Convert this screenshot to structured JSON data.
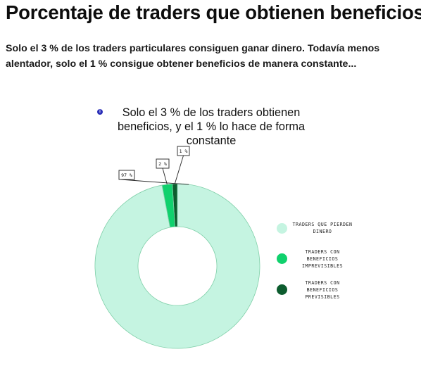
{
  "page": {
    "title": "Porcentaje de traders que obtienen beneficios",
    "intro": "Solo el 3 % de los traders particulares consiguen ganar dinero. Todavía menos alentador, solo el 1 % consigue obtener beneficios de manera constante..."
  },
  "chart_data": {
    "type": "pie",
    "title": "Solo el 3 % de los traders obtienen beneficios, y el 1 % lo hace de forma constante",
    "donut": true,
    "categories": [
      "TRADERS QUE PIERDEN DINERO",
      "TRADERS CON BENEFICIOS IMPREVISIBLES",
      "TRADERS CON BENEFICIOS PREVISIBLES"
    ],
    "values": [
      97,
      2,
      1
    ],
    "data_labels": [
      "97 %",
      "2 %",
      "1 %"
    ],
    "colors": [
      "#c5f4e1",
      "#10d16d",
      "#0c5c2e"
    ],
    "stroke_color": "#7fcfa8",
    "legend_position": "right"
  },
  "legend": {
    "items": [
      {
        "label": "TRADERS QUE PIERDEN DINERO",
        "color": "#c5f4e1"
      },
      {
        "label": "TRADERS CON BENEFICIOS IMPREVISIBLES",
        "color": "#10d16d"
      },
      {
        "label": "TRADERS CON BENEFICIOS PREVISIBLES",
        "color": "#0c5c2e"
      }
    ]
  },
  "icons": {
    "info": "info-icon"
  }
}
